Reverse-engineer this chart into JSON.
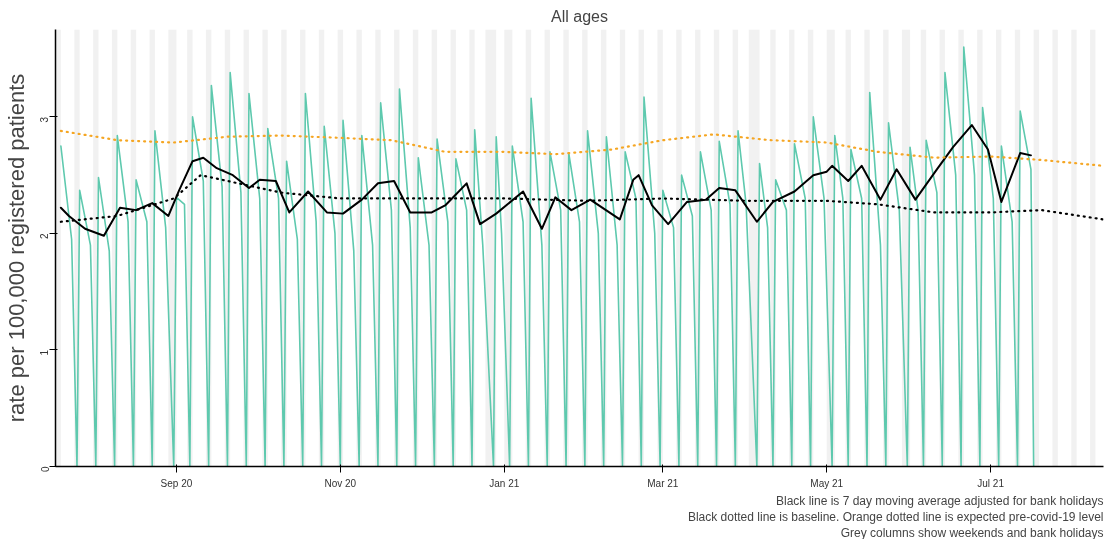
{
  "chart_data": {
    "type": "line",
    "title": "All ages",
    "ylabel": "rate per 100,000 registered patients",
    "xlim": [
      "2020-07-18",
      "2021-08-12"
    ],
    "ylim": [
      0,
      3.75
    ],
    "xticks": [
      {
        "value": "2020-09-01",
        "label": "Sep 20"
      },
      {
        "value": "2020-11-01",
        "label": "Nov 20"
      },
      {
        "value": "2021-01-01",
        "label": "Jan 21"
      },
      {
        "value": "2021-03-01",
        "label": "Mar 21"
      },
      {
        "value": "2021-05-01",
        "label": "May 21"
      },
      {
        "value": "2021-07-01",
        "label": "Jul 21"
      }
    ],
    "yticks": [
      0,
      1,
      2,
      3
    ],
    "grid": false,
    "series": [
      {
        "color": "#5ec9ae",
        "line_style": "solid",
        "x": [
          "2020-07-20",
          "2020-07-24",
          "2020-07-26",
          "2020-07-27",
          "2020-07-31",
          "2020-08-02",
          "2020-08-03",
          "2020-08-07",
          "2020-08-09",
          "2020-08-10",
          "2020-08-14",
          "2020-08-16",
          "2020-08-17",
          "2020-08-21",
          "2020-08-23",
          "2020-08-24",
          "2020-08-28",
          "2020-08-31",
          "2020-09-01",
          "2020-09-04",
          "2020-09-06",
          "2020-09-07",
          "2020-09-11",
          "2020-09-13",
          "2020-09-14",
          "2020-09-18",
          "2020-09-20",
          "2020-09-21",
          "2020-09-25",
          "2020-09-27",
          "2020-09-28",
          "2020-10-02",
          "2020-10-04",
          "2020-10-05",
          "2020-10-09",
          "2020-10-11",
          "2020-10-12",
          "2020-10-16",
          "2020-10-18",
          "2020-10-19",
          "2020-10-23",
          "2020-10-25",
          "2020-10-26",
          "2020-10-30",
          "2020-11-01",
          "2020-11-02",
          "2020-11-06",
          "2020-11-08",
          "2020-11-09",
          "2020-11-13",
          "2020-11-15",
          "2020-11-16",
          "2020-11-20",
          "2020-11-22",
          "2020-11-23",
          "2020-11-27",
          "2020-11-29",
          "2020-11-30",
          "2020-12-04",
          "2020-12-06",
          "2020-12-07",
          "2020-12-11",
          "2020-12-13",
          "2020-12-14",
          "2020-12-18",
          "2020-12-20",
          "2020-12-21",
          "2020-12-24",
          "2020-12-28",
          "2020-12-29",
          "2020-12-31",
          "2021-01-03",
          "2021-01-04",
          "2021-01-08",
          "2021-01-10",
          "2021-01-11",
          "2021-01-15",
          "2021-01-17",
          "2021-01-18",
          "2021-01-22",
          "2021-01-24",
          "2021-01-25",
          "2021-01-29",
          "2021-01-31",
          "2021-02-01",
          "2021-02-05",
          "2021-02-07",
          "2021-02-08",
          "2021-02-12",
          "2021-02-14",
          "2021-02-15",
          "2021-02-19",
          "2021-02-21",
          "2021-02-22",
          "2021-02-26",
          "2021-02-28",
          "2021-03-01",
          "2021-03-05",
          "2021-03-07",
          "2021-03-08",
          "2021-03-12",
          "2021-03-14",
          "2021-03-15",
          "2021-03-19",
          "2021-03-21",
          "2021-03-22",
          "2021-03-26",
          "2021-03-28",
          "2021-03-29",
          "2021-04-01",
          "2021-04-05",
          "2021-04-06",
          "2021-04-09",
          "2021-04-11",
          "2021-04-12",
          "2021-04-16",
          "2021-04-18",
          "2021-04-19",
          "2021-04-23",
          "2021-04-25",
          "2021-04-26",
          "2021-04-30",
          "2021-05-03",
          "2021-05-04",
          "2021-05-07",
          "2021-05-09",
          "2021-05-10",
          "2021-05-14",
          "2021-05-16",
          "2021-05-17",
          "2021-05-21",
          "2021-05-23",
          "2021-05-24",
          "2021-05-28",
          "2021-05-31",
          "2021-06-01",
          "2021-06-04",
          "2021-06-06",
          "2021-06-07",
          "2021-06-11",
          "2021-06-13",
          "2021-06-14",
          "2021-06-18",
          "2021-06-20",
          "2021-06-21",
          "2021-06-25",
          "2021-06-27",
          "2021-06-28",
          "2021-07-02",
          "2021-07-04",
          "2021-07-05",
          "2021-07-09",
          "2021-07-11",
          "2021-07-12",
          "2021-07-16",
          "2021-07-17"
        ],
        "values": [
          2.75,
          1.95,
          0,
          2.37,
          1.9,
          0,
          2.48,
          1.85,
          0,
          2.84,
          2.1,
          0,
          2.46,
          2.1,
          0,
          2.88,
          2.05,
          0,
          2.31,
          2.25,
          0,
          3.0,
          2.45,
          0,
          3.27,
          2.4,
          0,
          3.38,
          2.35,
          0,
          3.2,
          2.3,
          0,
          2.9,
          2.3,
          0,
          2.62,
          1.95,
          0,
          3.2,
          2.1,
          0,
          2.92,
          2.0,
          0,
          2.97,
          1.85,
          0,
          2.84,
          1.9,
          0,
          3.12,
          2.2,
          0,
          3.24,
          2.05,
          0,
          2.65,
          1.9,
          0,
          2.81,
          2.1,
          0,
          2.64,
          2.2,
          0,
          2.89,
          1.9,
          0,
          2.83,
          2.0,
          0,
          2.75,
          2.1,
          0,
          3.16,
          1.9,
          0,
          2.7,
          2.2,
          0,
          2.69,
          2.1,
          0,
          2.88,
          2.0,
          0,
          2.83,
          1.9,
          0,
          2.7,
          2.3,
          0,
          3.17,
          2.0,
          0,
          2.37,
          2.05,
          0,
          2.5,
          2.15,
          0,
          2.7,
          2.2,
          0,
          2.79,
          2.25,
          0,
          2.88,
          2.25,
          0,
          2.6,
          2.05,
          0,
          2.46,
          2.2,
          0,
          2.77,
          2.3,
          0,
          3.0,
          2.3,
          0,
          2.84,
          2.3,
          0,
          2.72,
          2.3,
          0,
          3.21,
          1.9,
          0,
          2.95,
          2.2,
          0,
          2.74,
          2.2,
          0,
          2.8,
          2.35,
          0,
          3.38,
          2.5,
          0,
          3.6,
          2.5,
          0,
          3.08,
          2.3,
          0,
          2.75,
          2.1,
          0,
          3.05,
          2.55,
          0
        ]
      },
      {
        "color": "#000000",
        "line_style": "solid",
        "x": [
          "2020-07-20",
          "2020-07-23",
          "2020-07-29",
          "2020-08-05",
          "2020-08-11",
          "2020-08-17",
          "2020-08-23",
          "2020-08-29",
          "2020-09-02",
          "2020-09-07",
          "2020-09-11",
          "2020-09-16",
          "2020-09-22",
          "2020-09-28",
          "2020-10-02",
          "2020-10-08",
          "2020-10-13",
          "2020-10-20",
          "2020-10-27",
          "2020-11-02",
          "2020-11-09",
          "2020-11-15",
          "2020-11-21",
          "2020-11-27",
          "2020-12-05",
          "2020-12-10",
          "2020-12-13",
          "2020-12-18",
          "2020-12-23",
          "2020-12-29",
          "2021-01-08",
          "2021-01-15",
          "2021-01-20",
          "2021-01-26",
          "2021-02-02",
          "2021-02-13",
          "2021-02-18",
          "2021-02-20",
          "2021-02-25",
          "2021-03-03",
          "2021-03-10",
          "2021-03-17",
          "2021-03-22",
          "2021-03-28",
          "2021-04-05",
          "2021-04-11",
          "2021-04-19",
          "2021-04-26",
          "2021-05-01",
          "2021-05-03",
          "2021-05-09",
          "2021-05-14",
          "2021-05-21",
          "2021-05-27",
          "2021-06-03",
          "2021-06-11",
          "2021-06-17",
          "2021-06-24",
          "2021-06-30",
          "2021-07-05",
          "2021-07-12",
          "2021-07-16"
        ],
        "values": [
          2.22,
          2.15,
          2.04,
          1.98,
          2.22,
          2.2,
          2.26,
          2.15,
          2.37,
          2.62,
          2.65,
          2.56,
          2.5,
          2.39,
          2.46,
          2.45,
          2.18,
          2.36,
          2.18,
          2.17,
          2.29,
          2.43,
          2.45,
          2.18,
          2.18,
          2.24,
          2.31,
          2.43,
          2.08,
          2.17,
          2.36,
          2.04,
          2.31,
          2.2,
          2.29,
          2.12,
          2.46,
          2.5,
          2.24,
          2.08,
          2.27,
          2.29,
          2.39,
          2.37,
          2.1,
          2.27,
          2.36,
          2.5,
          2.53,
          2.58,
          2.45,
          2.58,
          2.29,
          2.55,
          2.29,
          2.55,
          2.74,
          2.93,
          2.72,
          2.27,
          2.69,
          2.67
        ]
      },
      {
        "color": "#000000",
        "line_style": "dotted",
        "x": [
          "2020-07-20",
          "2020-08-10",
          "2020-08-31",
          "2020-09-10",
          "2020-09-20",
          "2020-10-10",
          "2020-11-01",
          "2020-12-01",
          "2021-01-01",
          "2021-02-01",
          "2021-03-01",
          "2021-04-01",
          "2021-05-01",
          "2021-05-20",
          "2021-06-10",
          "2021-07-01",
          "2021-07-20",
          "2021-08-12"
        ],
        "values": [
          2.1,
          2.15,
          2.3,
          2.5,
          2.45,
          2.35,
          2.3,
          2.3,
          2.3,
          2.28,
          2.3,
          2.28,
          2.28,
          2.25,
          2.18,
          2.18,
          2.2,
          2.12
        ]
      },
      {
        "color": "#f5a623",
        "line_style": "dotted",
        "x": [
          "2020-07-20",
          "2020-08-10",
          "2020-08-31",
          "2020-09-20",
          "2020-10-10",
          "2020-11-01",
          "2020-11-20",
          "2020-12-10",
          "2021-01-01",
          "2021-01-20",
          "2021-02-10",
          "2021-03-01",
          "2021-03-20",
          "2021-04-10",
          "2021-05-01",
          "2021-05-20",
          "2021-06-10",
          "2021-07-01",
          "2021-07-20",
          "2021-08-12"
        ],
        "values": [
          2.88,
          2.8,
          2.78,
          2.83,
          2.84,
          2.82,
          2.8,
          2.7,
          2.7,
          2.68,
          2.72,
          2.8,
          2.85,
          2.8,
          2.78,
          2.7,
          2.65,
          2.66,
          2.63,
          2.58
        ]
      }
    ],
    "bands": [
      {
        "axis": "x",
        "from": "2020-07-18",
        "to": "2020-07-20"
      },
      {
        "axis": "x",
        "from": "2020-07-25",
        "to": "2020-07-27"
      },
      {
        "axis": "x",
        "from": "2020-08-01",
        "to": "2020-08-03"
      },
      {
        "axis": "x",
        "from": "2020-08-08",
        "to": "2020-08-10"
      },
      {
        "axis": "x",
        "from": "2020-08-15",
        "to": "2020-08-17"
      },
      {
        "axis": "x",
        "from": "2020-08-22",
        "to": "2020-08-24"
      },
      {
        "axis": "x",
        "from": "2020-08-29",
        "to": "2020-09-01"
      },
      {
        "axis": "x",
        "from": "2020-09-05",
        "to": "2020-09-07"
      },
      {
        "axis": "x",
        "from": "2020-09-12",
        "to": "2020-09-14"
      },
      {
        "axis": "x",
        "from": "2020-09-19",
        "to": "2020-09-21"
      },
      {
        "axis": "x",
        "from": "2020-09-26",
        "to": "2020-09-28"
      },
      {
        "axis": "x",
        "from": "2020-10-03",
        "to": "2020-10-05"
      },
      {
        "axis": "x",
        "from": "2020-10-10",
        "to": "2020-10-12"
      },
      {
        "axis": "x",
        "from": "2020-10-17",
        "to": "2020-10-19"
      },
      {
        "axis": "x",
        "from": "2020-10-24",
        "to": "2020-10-26"
      },
      {
        "axis": "x",
        "from": "2020-10-31",
        "to": "2020-11-02"
      },
      {
        "axis": "x",
        "from": "2020-11-07",
        "to": "2020-11-09"
      },
      {
        "axis": "x",
        "from": "2020-11-14",
        "to": "2020-11-16"
      },
      {
        "axis": "x",
        "from": "2020-11-21",
        "to": "2020-11-23"
      },
      {
        "axis": "x",
        "from": "2020-11-28",
        "to": "2020-11-30"
      },
      {
        "axis": "x",
        "from": "2020-12-05",
        "to": "2020-12-07"
      },
      {
        "axis": "x",
        "from": "2020-12-12",
        "to": "2020-12-14"
      },
      {
        "axis": "x",
        "from": "2020-12-19",
        "to": "2020-12-21"
      },
      {
        "axis": "x",
        "from": "2020-12-25",
        "to": "2020-12-29"
      },
      {
        "axis": "x",
        "from": "2021-01-01",
        "to": "2021-01-04"
      },
      {
        "axis": "x",
        "from": "2021-01-09",
        "to": "2021-01-11"
      },
      {
        "axis": "x",
        "from": "2021-01-16",
        "to": "2021-01-18"
      },
      {
        "axis": "x",
        "from": "2021-01-23",
        "to": "2021-01-25"
      },
      {
        "axis": "x",
        "from": "2021-01-30",
        "to": "2021-02-01"
      },
      {
        "axis": "x",
        "from": "2021-02-06",
        "to": "2021-02-08"
      },
      {
        "axis": "x",
        "from": "2021-02-13",
        "to": "2021-02-15"
      },
      {
        "axis": "x",
        "from": "2021-02-20",
        "to": "2021-02-22"
      },
      {
        "axis": "x",
        "from": "2021-02-27",
        "to": "2021-03-01"
      },
      {
        "axis": "x",
        "from": "2021-03-06",
        "to": "2021-03-08"
      },
      {
        "axis": "x",
        "from": "2021-03-13",
        "to": "2021-03-15"
      },
      {
        "axis": "x",
        "from": "2021-03-20",
        "to": "2021-03-22"
      },
      {
        "axis": "x",
        "from": "2021-03-27",
        "to": "2021-03-29"
      },
      {
        "axis": "x",
        "from": "2021-04-02",
        "to": "2021-04-06"
      },
      {
        "axis": "x",
        "from": "2021-04-10",
        "to": "2021-04-12"
      },
      {
        "axis": "x",
        "from": "2021-04-17",
        "to": "2021-04-19"
      },
      {
        "axis": "x",
        "from": "2021-04-24",
        "to": "2021-04-26"
      },
      {
        "axis": "x",
        "from": "2021-05-01",
        "to": "2021-05-04"
      },
      {
        "axis": "x",
        "from": "2021-05-08",
        "to": "2021-05-10"
      },
      {
        "axis": "x",
        "from": "2021-05-15",
        "to": "2021-05-17"
      },
      {
        "axis": "x",
        "from": "2021-05-22",
        "to": "2021-05-24"
      },
      {
        "axis": "x",
        "from": "2021-05-29",
        "to": "2021-06-01"
      },
      {
        "axis": "x",
        "from": "2021-06-05",
        "to": "2021-06-07"
      },
      {
        "axis": "x",
        "from": "2021-06-12",
        "to": "2021-06-14"
      },
      {
        "axis": "x",
        "from": "2021-06-19",
        "to": "2021-06-21"
      },
      {
        "axis": "x",
        "from": "2021-06-26",
        "to": "2021-06-28"
      },
      {
        "axis": "x",
        "from": "2021-07-03",
        "to": "2021-07-05"
      },
      {
        "axis": "x",
        "from": "2021-07-10",
        "to": "2021-07-12"
      },
      {
        "axis": "x",
        "from": "2021-07-17",
        "to": "2021-07-19"
      },
      {
        "axis": "x",
        "from": "2021-07-24",
        "to": "2021-07-26"
      },
      {
        "axis": "x",
        "from": "2021-07-31",
        "to": "2021-08-02"
      },
      {
        "axis": "x",
        "from": "2021-08-07",
        "to": "2021-08-09"
      }
    ],
    "annotations": [
      "Black line is 7 day moving average adjusted for bank holidays",
      "Black dotted line is baseline. Orange dotted line is expected pre-covid-19 level",
      "Grey columns show weekends and bank holidays"
    ]
  }
}
